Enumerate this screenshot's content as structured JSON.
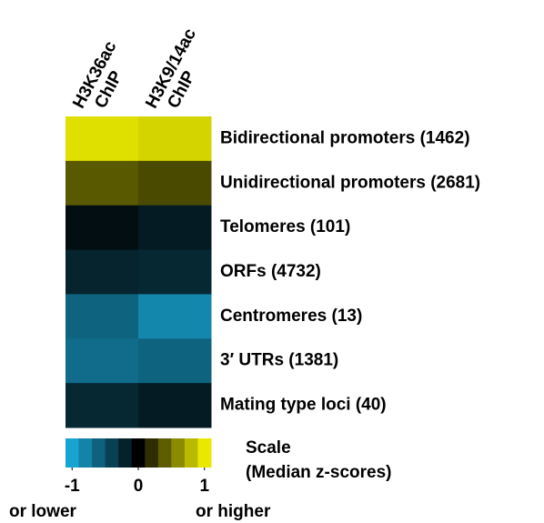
{
  "chart_data": {
    "type": "heatmap",
    "categories": [
      [
        "H3K36ac",
        "ChIP"
      ],
      [
        "H3K9/14ac",
        "ChIP"
      ]
    ],
    "rows": [
      "Bidirectional promoters (1462)",
      "Unidirectional promoters (2681)",
      "Telomeres (101)",
      "ORFs (4732)",
      "Centromeres (13)",
      "3′ UTRs (1381)",
      "Mating type loci (40)"
    ],
    "values": [
      [
        0.88,
        0.83
      ],
      [
        0.35,
        0.29
      ],
      [
        -0.08,
        -0.15
      ],
      [
        -0.2,
        -0.22
      ],
      [
        -0.55,
        -0.75
      ],
      [
        -0.6,
        -0.55
      ],
      [
        -0.22,
        -0.15
      ]
    ],
    "colors": {
      "low": "#1ab4e6",
      "mid": "#000000",
      "high": "#ffff00"
    },
    "zlim": [
      -1,
      1
    ],
    "zticks": [
      -1,
      0,
      1
    ],
    "scale_title": [
      "Scale",
      "(Median z-scores)"
    ],
    "low_note": "or lower",
    "high_note": "or higher"
  }
}
